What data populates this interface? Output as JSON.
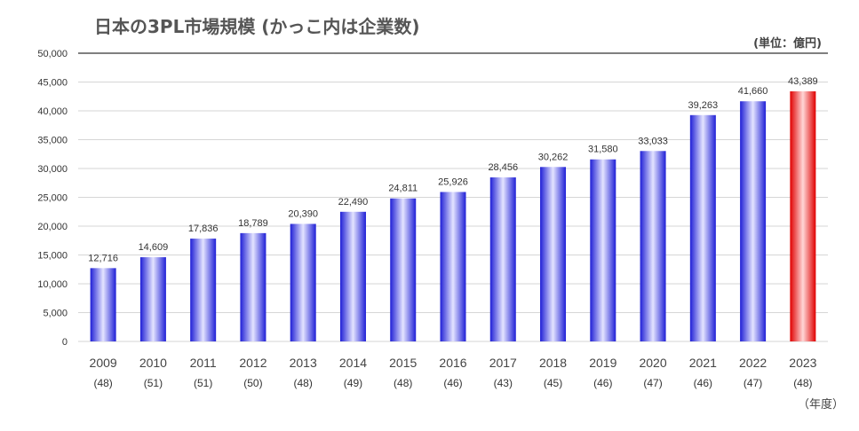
{
  "title": "日本の3PL市場規模 (かっこ内は企業数)",
  "unit_label": "(単位：億円)",
  "year_suffix": "（年度）",
  "colors": {
    "bar_blue_edge": "#1f1fd6",
    "bar_blue_center": "#e4e4ff",
    "bar_red_edge": "#e00000",
    "bar_red_center": "#ffd6d6",
    "grid": "#d6d6d6",
    "top_line": "#333333"
  },
  "chart_data": {
    "type": "bar",
    "categories": [
      "2009",
      "2010",
      "2011",
      "2012",
      "2013",
      "2014",
      "2015",
      "2016",
      "2017",
      "2018",
      "2019",
      "2020",
      "2021",
      "2022",
      "2023"
    ],
    "company_counts": [
      "(48)",
      "(51)",
      "(51)",
      "(50)",
      "(48)",
      "(49)",
      "(48)",
      "(46)",
      "(43)",
      "(45)",
      "(46)",
      "(47)",
      "(46)",
      "(47)",
      "(48)"
    ],
    "values": [
      12716,
      14609,
      17836,
      18789,
      20390,
      22490,
      24811,
      25926,
      28456,
      30262,
      31580,
      33033,
      39263,
      41660,
      43389
    ],
    "value_labels": [
      "12,716",
      "14,609",
      "17,836",
      "18,789",
      "20,390",
      "22,490",
      "24,811",
      "25,926",
      "28,456",
      "30,262",
      "31,580",
      "33,033",
      "39,263",
      "41,660",
      "43,389"
    ],
    "highlight_index": 14,
    "ylim": [
      0,
      50000
    ],
    "y_ticks": [
      0,
      5000,
      10000,
      15000,
      20000,
      25000,
      30000,
      35000,
      40000,
      45000,
      50000
    ],
    "y_tick_labels": [
      "0",
      "5,000",
      "10,000",
      "15,000",
      "20,000",
      "25,000",
      "30,000",
      "35,000",
      "40,000",
      "45,000",
      "50,000"
    ],
    "grid": true,
    "legend": "none"
  }
}
